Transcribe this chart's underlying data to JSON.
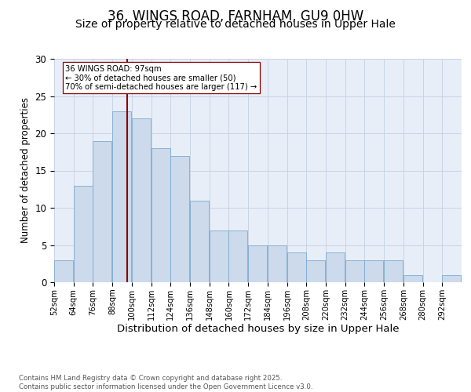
{
  "title": "36, WINGS ROAD, FARNHAM, GU9 0HW",
  "subtitle": "Size of property relative to detached houses in Upper Hale",
  "xlabel": "Distribution of detached houses by size in Upper Hale",
  "ylabel": "Number of detached properties",
  "bar_labels": [
    "52sqm",
    "64sqm",
    "76sqm",
    "88sqm",
    "100sqm",
    "112sqm",
    "124sqm",
    "136sqm",
    "148sqm",
    "160sqm",
    "172sqm",
    "184sqm",
    "196sqm",
    "208sqm",
    "220sqm",
    "232sqm",
    "244sqm",
    "256sqm",
    "268sqm",
    "280sqm",
    "292sqm"
  ],
  "bins": [
    52,
    64,
    76,
    88,
    100,
    112,
    124,
    136,
    148,
    160,
    172,
    184,
    196,
    208,
    220,
    232,
    244,
    256,
    268,
    280,
    292,
    304
  ],
  "counts": [
    3,
    13,
    19,
    23,
    22,
    18,
    17,
    11,
    7,
    7,
    5,
    5,
    4,
    3,
    4,
    3,
    3,
    3,
    1,
    0,
    1
  ],
  "bar_color": "#ccdaeb",
  "bar_edge_color": "#7aaad0",
  "vline_x": 97,
  "vline_color": "#8b0000",
  "annotation_text": "36 WINGS ROAD: 97sqm\n← 30% of detached houses are smaller (50)\n70% of semi-detached houses are larger (117) →",
  "annotation_box_color": "white",
  "annotation_box_edge": "#8b0000",
  "ylim": [
    0,
    30
  ],
  "yticks": [
    0,
    5,
    10,
    15,
    20,
    25,
    30
  ],
  "grid_color": "#c8d4e4",
  "background_color": "#e8eef8",
  "footer_text": "Contains HM Land Registry data © Crown copyright and database right 2025.\nContains public sector information licensed under the Open Government Licence v3.0.",
  "title_fontsize": 12,
  "subtitle_fontsize": 10,
  "xlabel_fontsize": 9.5,
  "ylabel_fontsize": 8.5
}
